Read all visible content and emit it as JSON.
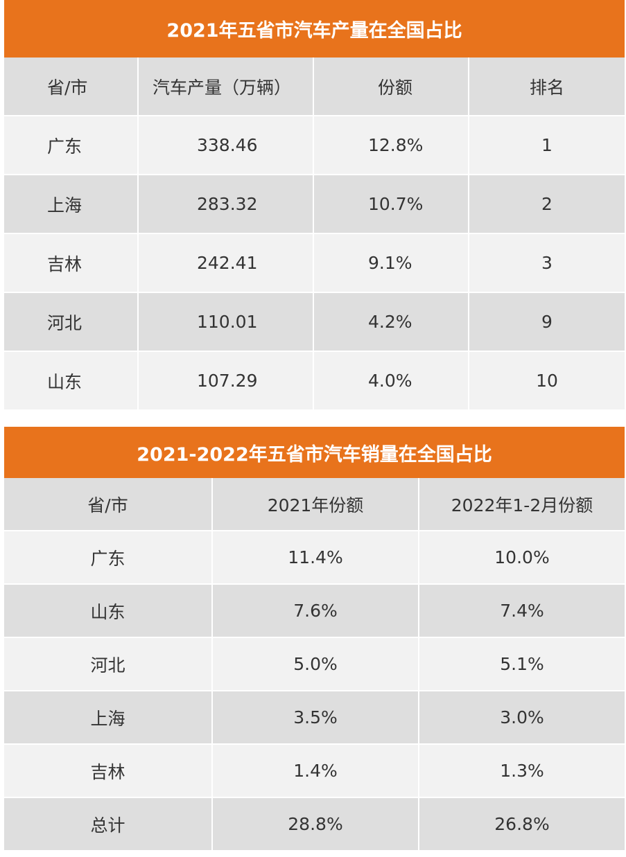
{
  "table1": {
    "title": "2021年五省市汽车产量在全国占比",
    "headers": [
      "省/市",
      "汽车产量（万辆）",
      "份额",
      "排名"
    ],
    "rows": [
      [
        "广东",
        "338.46",
        "12.8%",
        "1"
      ],
      [
        "上海",
        "283.32",
        "10.7%",
        "2"
      ],
      [
        "吉林",
        "242.41",
        "9.1%",
        "3"
      ],
      [
        "河北",
        "110.01",
        "4.2%",
        "9"
      ],
      [
        "山东",
        "107.29",
        "4.0%",
        "10"
      ]
    ]
  },
  "table2": {
    "title": "2021-2022年五省市汽车销量在全国占比",
    "headers": [
      "省/市",
      "2021年份额",
      "2022年1-2月份额"
    ],
    "rows": [
      [
        "广东",
        "11.4%",
        "10.0%"
      ],
      [
        "山东",
        "7.6%",
        "7.4%"
      ],
      [
        "河北",
        "5.0%",
        "5.1%"
      ],
      [
        "上海",
        "3.5%",
        "3.0%"
      ],
      [
        "吉林",
        "1.4%",
        "1.3%"
      ],
      [
        "总计",
        "28.8%",
        "26.8%"
      ]
    ]
  },
  "colors": {
    "title_bg": "#e8731c",
    "title_text": "#ffffff",
    "row_light": "#f2f2f2",
    "row_dark": "#dedede"
  }
}
